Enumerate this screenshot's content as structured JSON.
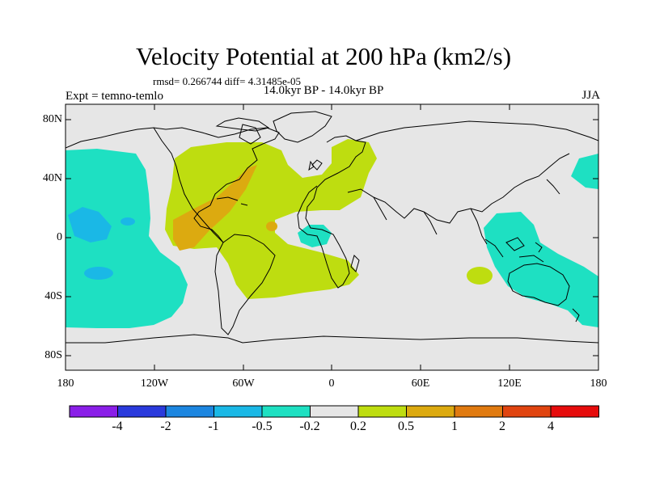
{
  "header": {
    "title": "Velocity Potential at 200 hPa (km2/s)",
    "stats": "rmsd= 0.266744 diff= 4.31485e-05",
    "left_label": "Expt = temno-temlo",
    "center_label": "14.0kyr BP - 14.0kyr BP",
    "right_label": "JJA"
  },
  "axes": {
    "lat_ticks": [
      "80N",
      "40N",
      "0",
      "40S",
      "80S"
    ],
    "lon_ticks": [
      "180",
      "120W",
      "60W",
      "0",
      "60E",
      "120E",
      "180"
    ]
  },
  "colorbar": {
    "colors": [
      "#8a1ee8",
      "#2a3adc",
      "#1c86e0",
      "#1ab8e6",
      "#1ee0c2",
      "#e6e6e6",
      "#bedd10",
      "#dcaa10",
      "#e07a10",
      "#e04410",
      "#e60c0c"
    ],
    "labels": [
      "-4",
      "-2",
      "-1",
      "-0.5",
      "-0.2",
      "0.2",
      "0.5",
      "1",
      "2",
      "4"
    ]
  },
  "colors": {
    "ocean_neutral": "#e6e6e6",
    "weak_positive": "#bedd10",
    "moderate_positive": "#dcaa10",
    "weak_negative": "#1ee0c2",
    "moderate_negative": "#1ab8e6"
  }
}
